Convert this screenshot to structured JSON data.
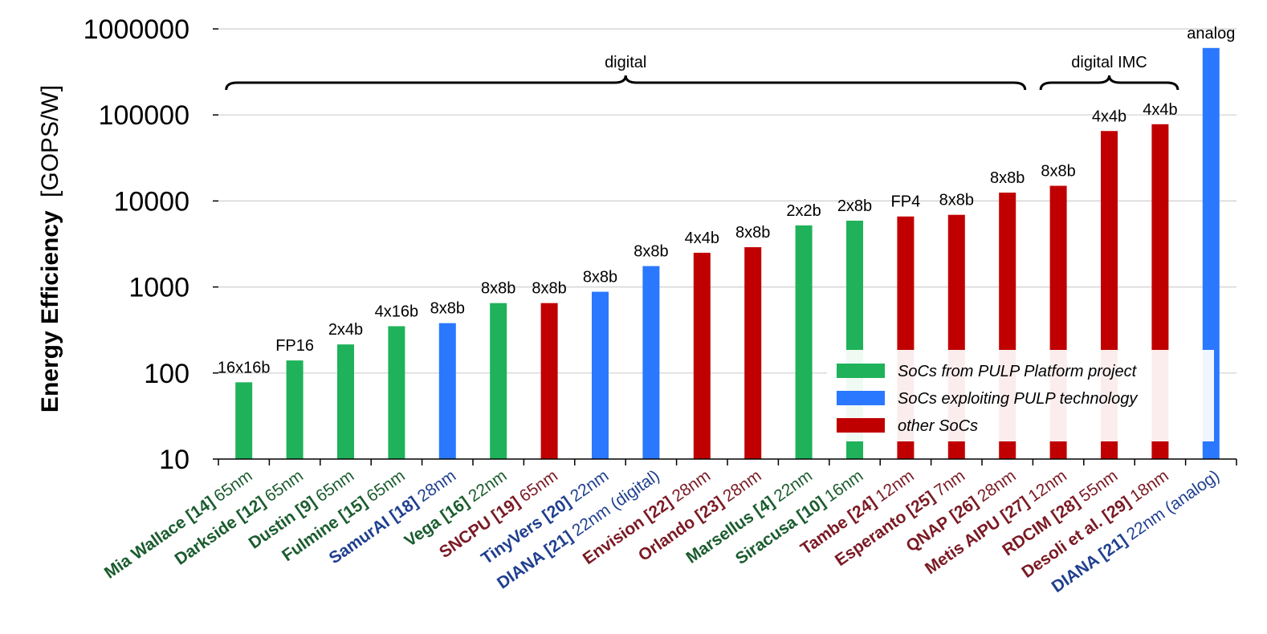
{
  "chart_data": {
    "type": "bar",
    "scale": "log",
    "ylabel_bold": "Energy Efficiency",
    "ylabel_unit": "[GOPS/W]",
    "ylim": [
      10,
      1000000
    ],
    "yticks": [
      "10",
      "100",
      "1000",
      "10000",
      "100000",
      "1000000"
    ],
    "grid": true,
    "colors": {
      "pulp": "#1fb25a",
      "exploit": "#2a78ff",
      "other": "#c00000",
      "pulp_text": "#1a5c2e",
      "exploit_text": "#1f3f8f",
      "other_text": "#7a1a24"
    },
    "legend": [
      {
        "key": "pulp",
        "label": "SoCs from PULP Platform project"
      },
      {
        "key": "exploit",
        "label": "SoCs exploiting PULP technology"
      },
      {
        "key": "other",
        "label": "other SoCs"
      }
    ],
    "groups": [
      {
        "label": "digital",
        "from": 0,
        "to": 15
      },
      {
        "label": "digital IMC",
        "from": 16,
        "to": 18
      }
    ],
    "bars": [
      {
        "name": "Mia Wallace [14]",
        "node": "65nm",
        "cat": "pulp",
        "value": 78,
        "precision": "16x16b"
      },
      {
        "name": "Darkside [12]",
        "node": "65nm",
        "cat": "pulp",
        "value": 140,
        "precision": "FP16"
      },
      {
        "name": "Dustin [9]",
        "node": "65nm",
        "cat": "pulp",
        "value": 215,
        "precision": "2x4b"
      },
      {
        "name": "Fulmine [15]",
        "node": "65nm",
        "cat": "pulp",
        "value": 350,
        "precision": "4x16b"
      },
      {
        "name": "SamurAI [18]",
        "node": "28nm",
        "cat": "exploit",
        "value": 380,
        "precision": "8x8b"
      },
      {
        "name": "Vega [16]",
        "node": "22nm",
        "cat": "pulp",
        "value": 650,
        "precision": "8x8b"
      },
      {
        "name": "SNCPU [19]",
        "node": "65nm",
        "cat": "other",
        "value": 650,
        "precision": "8x8b"
      },
      {
        "name": "TinyVers [20]",
        "node": "22nm",
        "cat": "exploit",
        "value": 880,
        "precision": "8x8b"
      },
      {
        "name": "DIANA [21]",
        "node": "22nm (digital)",
        "cat": "exploit",
        "value": 1750,
        "precision": "8x8b"
      },
      {
        "name": "Envision [22]",
        "node": "28nm",
        "cat": "other",
        "value": 2500,
        "precision": "4x4b"
      },
      {
        "name": "Orlando [23]",
        "node": "28nm",
        "cat": "other",
        "value": 2900,
        "precision": "8x8b"
      },
      {
        "name": "Marsellus [4]",
        "node": "22nm",
        "cat": "pulp",
        "value": 5200,
        "precision": "2x2b"
      },
      {
        "name": "Siracusa [10]",
        "node": "16nm",
        "cat": "pulp",
        "value": 5900,
        "precision": "2x8b"
      },
      {
        "name": "Tambe [24]",
        "node": "12nm",
        "cat": "other",
        "value": 6600,
        "precision": "FP4"
      },
      {
        "name": "Esperanto [25]",
        "node": "7nm",
        "cat": "other",
        "value": 6900,
        "precision": "8x8b"
      },
      {
        "name": "QNAP [26]",
        "node": "28nm",
        "cat": "other",
        "value": 12500,
        "precision": "8x8b"
      },
      {
        "name": "Metis AIPU [27]",
        "node": "12nm",
        "cat": "other",
        "value": 15000,
        "precision": "8x8b"
      },
      {
        "name": "RDCIM [28]",
        "node": "55nm",
        "cat": "other",
        "value": 65000,
        "precision": "4x4b"
      },
      {
        "name": "Desoli et al. [29]",
        "node": "18nm",
        "cat": "other",
        "value": 78000,
        "precision": "4x4b"
      },
      {
        "name": "DIANA [21]",
        "node": "22nm (analog)",
        "cat": "exploit",
        "value": 600000,
        "precision": "analog"
      }
    ]
  }
}
